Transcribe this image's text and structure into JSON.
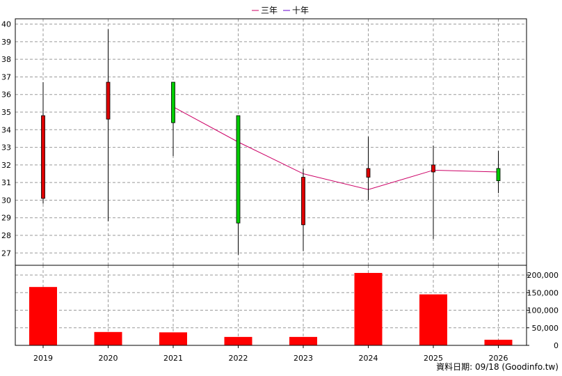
{
  "chart_data": {
    "type": "candlestick",
    "legend": [
      {
        "label": "三年",
        "color": "#cc0066"
      },
      {
        "label": "十年",
        "color": "#6600cc"
      }
    ],
    "legend_position": "top-center",
    "x_categories": [
      "2019",
      "2020",
      "2021",
      "2022",
      "2023",
      "2024",
      "2025",
      "2026"
    ],
    "price_axis": {
      "ylim": [
        26.3,
        40.3
      ],
      "ticks": [
        "40",
        "39",
        "38",
        "37",
        "36",
        "35",
        "34",
        "33",
        "32",
        "31",
        "30",
        "29",
        "28",
        "27"
      ]
    },
    "candles": [
      {
        "year": "2019",
        "open": 30.1,
        "high": 36.7,
        "low": 29.8,
        "close": 34.8,
        "color": "#dd0000"
      },
      {
        "year": "2020",
        "open": 34.6,
        "high": 39.7,
        "low": 28.8,
        "close": 36.7,
        "color": "#dd0000"
      },
      {
        "year": "2021",
        "open": 36.7,
        "high": 36.7,
        "low": 32.5,
        "close": 34.4,
        "color": "#00cc00"
      },
      {
        "year": "2022",
        "open": 34.8,
        "high": 34.8,
        "low": 26.9,
        "close": 28.7,
        "color": "#00cc00"
      },
      {
        "year": "2023",
        "open": 28.6,
        "high": 31.8,
        "low": 27.1,
        "close": 31.3,
        "color": "#dd0000"
      },
      {
        "year": "2024",
        "open": 31.3,
        "high": 33.6,
        "low": 30.0,
        "close": 31.8,
        "color": "#dd0000"
      },
      {
        "year": "2025",
        "open": 31.6,
        "high": 33.1,
        "low": 27.8,
        "close": 32.0,
        "color": "#dd0000"
      },
      {
        "year": "2026",
        "open": 31.8,
        "high": 32.8,
        "low": 30.4,
        "close": 31.1,
        "color": "#00cc00"
      }
    ],
    "series": [
      {
        "name": "三年",
        "color": "#cc0066",
        "x": [
          "2021",
          "2022",
          "2023",
          "2024",
          "2025",
          "2026"
        ],
        "values": [
          35.3,
          33.3,
          31.5,
          30.6,
          31.7,
          31.6
        ]
      }
    ],
    "volume_axis": {
      "ylim": [
        0,
        200000
      ],
      "ticks": [
        "200,000",
        "150,000",
        "100,000",
        "50,000",
        "0"
      ]
    },
    "volume": {
      "color": "#ff0000",
      "x": [
        "2019",
        "2020",
        "2021",
        "2022",
        "2023",
        "2024",
        "2025",
        "2026"
      ],
      "values": [
        166000,
        38000,
        37000,
        24000,
        24000,
        206000,
        145000,
        16000
      ]
    },
    "grid": true
  },
  "footnote": "資料日期: 09/18  (Goodinfo.tw)"
}
